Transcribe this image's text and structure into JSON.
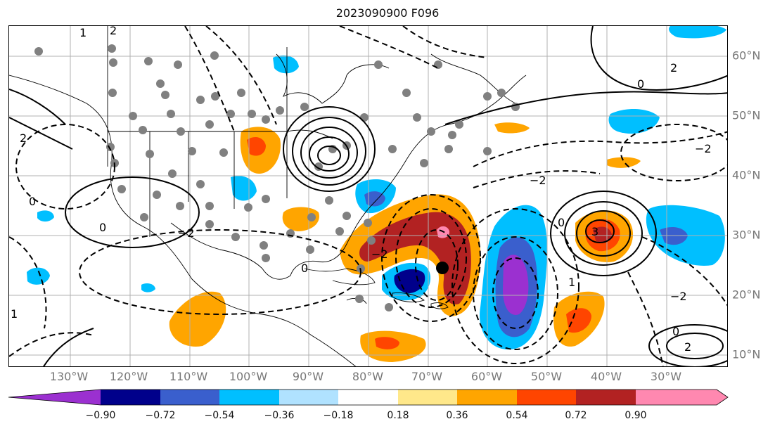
{
  "title": "2023090900 F096",
  "longitude_labels": [
    "130°W",
    "120°W",
    "110°W",
    "100°W",
    "90°W",
    "80°W",
    "70°W",
    "60°W",
    "50°W",
    "40°W",
    "30°W"
  ],
  "latitude_labels": [
    "60°N",
    "50°N",
    "40°N",
    "30°N",
    "20°N",
    "10°N"
  ],
  "colorbar": {
    "tick_labels": [
      "−0.90",
      "−0.72",
      "−0.54",
      "−0.36",
      "−0.18",
      "0.18",
      "0.36",
      "0.54",
      "0.72",
      "0.90"
    ],
    "colors": [
      "#9b30d0",
      "#00008b",
      "#3a5fcd",
      "#00bfff",
      "#b0e2ff",
      "#ffffff",
      "#ffe88a",
      "#ffa500",
      "#ff4500",
      "#b22222",
      "#ff88b0"
    ]
  },
  "contour_labels": [
    "0",
    "1",
    "2",
    "2",
    "3",
    "−2",
    "0",
    "1",
    "2",
    "0",
    "0",
    "−2",
    "−2",
    "−2",
    "2",
    "0",
    "0",
    "1",
    "−2"
  ],
  "marker": "center-dot",
  "colors": {
    "gray_dots": "#808080",
    "coast": "#000000",
    "grid": "#b0b0b0",
    "axis_text": "#777777"
  }
}
